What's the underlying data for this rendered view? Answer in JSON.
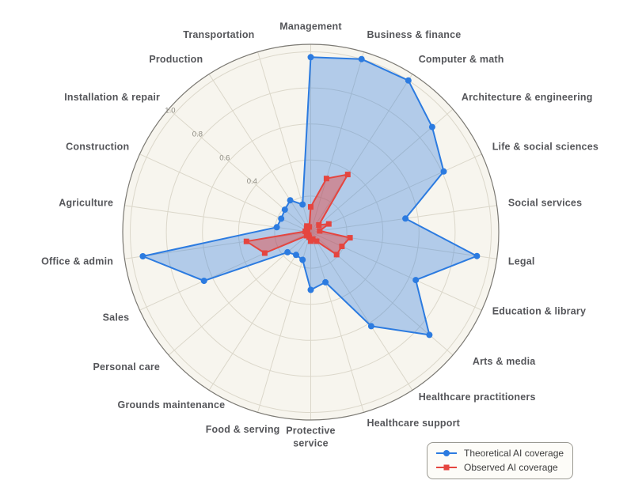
{
  "chart_data": {
    "type": "radar",
    "title": "",
    "categories": [
      "Management",
      "Business & finance",
      "Computer & math",
      "Architecture & engineering",
      "Life & social sciences",
      "Social services",
      "Legal",
      "Education & library",
      "Arts & media",
      "Healthcare practitioners",
      "Healthcare support",
      "Protective service",
      "Food & serving",
      "Grounds maintenance",
      "Personal care",
      "Sales",
      "Office & admin",
      "Agriculture",
      "Construction",
      "Installation & repair",
      "Production",
      "Transportation"
    ],
    "series": [
      {
        "key": "theoretical",
        "name": "Theoretical AI coverage",
        "marker": "circle",
        "color": "#2c7be0",
        "fill_opacity": 0.34,
        "values": [
          0.97,
          1.0,
          1.0,
          0.89,
          0.81,
          0.53,
          0.93,
          0.64,
          0.87,
          0.62,
          0.29,
          0.32,
          0.16,
          0.15,
          0.17,
          0.65,
          0.94,
          0.19,
          0.18,
          0.19,
          0.21,
          0.16
        ]
      },
      {
        "key": "observed",
        "name": "Observed AI coverage",
        "marker": "square",
        "color": "#e5453f",
        "fill_opacity": 0.45,
        "values": [
          0.14,
          0.31,
          0.38,
          0.06,
          0.11,
          0.05,
          0.22,
          0.19,
          0.19,
          0.06,
          0.04,
          0.05,
          0.03,
          0.02,
          0.03,
          0.28,
          0.36,
          0.03,
          0.02,
          0.03,
          0.04,
          0.03
        ]
      }
    ],
    "radial_axis": {
      "ticks": [
        0.2,
        0.4,
        0.6,
        0.8,
        1.0
      ],
      "tick_labels": [
        "0.4",
        "0.6",
        "0.8",
        "1.0"
      ],
      "tick_label_values": [
        0.4,
        0.6,
        0.8,
        1.0
      ],
      "max": 1.04,
      "grid": "on"
    },
    "legend": {
      "position": "bottom-right",
      "entries": [
        "Theoretical AI coverage",
        "Observed AI coverage"
      ]
    },
    "style": {
      "plot_bg": "#f7f5ee",
      "grid": "#dbd7ca",
      "outer_ring": "#7b7973",
      "category_label_color": "#55565a",
      "tick_label_color": "#8a887f",
      "legend_border": "#9b9a93",
      "legend_bg": "#fdfcf8",
      "legend_text": "#3d3d3d",
      "page_bg": "#ffffff"
    }
  }
}
